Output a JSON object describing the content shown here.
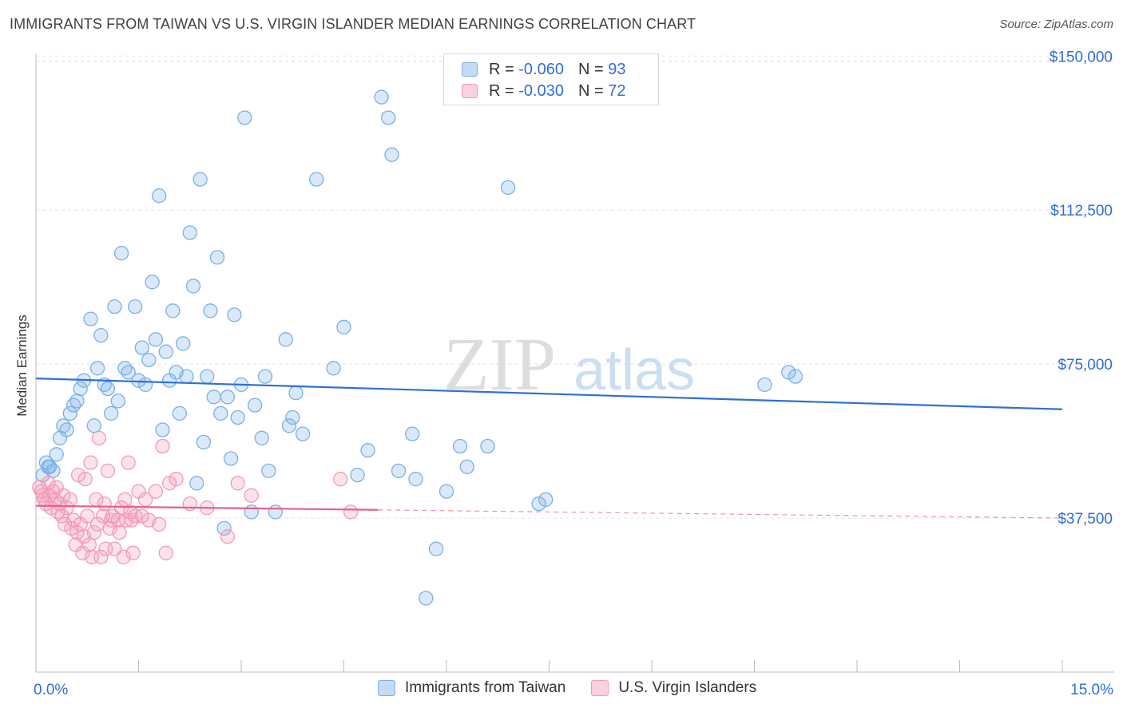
{
  "title": "IMMIGRANTS FROM TAIWAN VS U.S. VIRGIN ISLANDER MEDIAN EARNINGS CORRELATION CHART",
  "source": "Source: ZipAtlas.com",
  "watermark": {
    "zip": "ZIP",
    "atlas": "atlas"
  },
  "legend": {
    "rows": [
      {
        "r_label": "R =",
        "r_value": "-0.060",
        "n_label": "N =",
        "n_value": "93",
        "color": "#7ab0e6"
      },
      {
        "r_label": "R =",
        "r_value": "-0.030",
        "n_label": "N =",
        "n_value": "72",
        "color": "#f29ab8"
      }
    ]
  },
  "bottom_legend": [
    {
      "label": "Immigrants from Taiwan",
      "color": "#7ab0e6"
    },
    {
      "label": "U.S. Virgin Islanders",
      "color": "#f29ab8"
    }
  ],
  "chart_data": {
    "type": "scatter",
    "title": "IMMIGRANTS FROM TAIWAN VS U.S. VIRGIN ISLANDER MEDIAN EARNINGS CORRELATION CHART",
    "xlabel": "",
    "ylabel": "Median Earnings",
    "xlim": [
      0,
      15
    ],
    "ylim": [
      0,
      152000
    ],
    "x_tick_labels": [
      {
        "value": 0,
        "label": "0.0%"
      },
      {
        "value": 15,
        "label": "15.0%"
      }
    ],
    "y_ticks": [
      {
        "value": 37500,
        "label": "$37,500"
      },
      {
        "value": 75000,
        "label": "$75,000"
      },
      {
        "value": 112500,
        "label": "$112,500"
      },
      {
        "value": 150000,
        "label": "$150,000"
      }
    ],
    "grid": true,
    "legend_position": "top-center",
    "series": [
      {
        "name": "Immigrants from Taiwan",
        "color": "#7ab0e6",
        "line_color": "#2f6fd6",
        "trend": {
          "x": [
            0,
            15
          ],
          "y": [
            71500,
            64000
          ]
        },
        "points": [
          [
            0.15,
            51000
          ],
          [
            0.2,
            50000
          ],
          [
            0.25,
            49000
          ],
          [
            0.3,
            53000
          ],
          [
            0.35,
            57000
          ],
          [
            0.4,
            60000
          ],
          [
            0.45,
            59000
          ],
          [
            0.5,
            63000
          ],
          [
            0.55,
            65000
          ],
          [
            0.6,
            66000
          ],
          [
            0.65,
            69000
          ],
          [
            0.7,
            71000
          ],
          [
            0.8,
            86000
          ],
          [
            0.85,
            60000
          ],
          [
            0.9,
            74000
          ],
          [
            0.95,
            82000
          ],
          [
            1.0,
            70000
          ],
          [
            1.05,
            69000
          ],
          [
            1.1,
            63000
          ],
          [
            1.15,
            89000
          ],
          [
            1.2,
            66000
          ],
          [
            1.25,
            102000
          ],
          [
            1.3,
            74000
          ],
          [
            1.35,
            73000
          ],
          [
            1.45,
            89000
          ],
          [
            1.5,
            71000
          ],
          [
            1.55,
            79000
          ],
          [
            1.6,
            70000
          ],
          [
            1.65,
            76000
          ],
          [
            1.7,
            95000
          ],
          [
            1.75,
            81000
          ],
          [
            1.8,
            116000
          ],
          [
            1.85,
            59000
          ],
          [
            1.9,
            78000
          ],
          [
            1.95,
            71000
          ],
          [
            2.0,
            88000
          ],
          [
            2.05,
            73000
          ],
          [
            2.1,
            63000
          ],
          [
            2.15,
            80000
          ],
          [
            2.2,
            72000
          ],
          [
            2.25,
            107000
          ],
          [
            2.3,
            94000
          ],
          [
            2.35,
            46000
          ],
          [
            2.4,
            120000
          ],
          [
            2.45,
            56000
          ],
          [
            2.5,
            72000
          ],
          [
            2.55,
            88000
          ],
          [
            2.6,
            67000
          ],
          [
            2.65,
            101000
          ],
          [
            2.7,
            63000
          ],
          [
            2.75,
            35000
          ],
          [
            2.8,
            67000
          ],
          [
            2.85,
            52000
          ],
          [
            2.9,
            87000
          ],
          [
            2.95,
            62000
          ],
          [
            3.0,
            70000
          ],
          [
            3.05,
            135000
          ],
          [
            3.15,
            39000
          ],
          [
            3.2,
            65000
          ],
          [
            3.3,
            57000
          ],
          [
            3.35,
            72000
          ],
          [
            3.4,
            49000
          ],
          [
            3.5,
            39000
          ],
          [
            3.65,
            81000
          ],
          [
            3.7,
            60000
          ],
          [
            3.75,
            62000
          ],
          [
            3.8,
            68000
          ],
          [
            3.9,
            58000
          ],
          [
            4.1,
            120000
          ],
          [
            4.35,
            74000
          ],
          [
            4.5,
            84000
          ],
          [
            4.7,
            48000
          ],
          [
            4.85,
            54000
          ],
          [
            5.05,
            140000
          ],
          [
            5.15,
            135000
          ],
          [
            5.2,
            126000
          ],
          [
            5.3,
            49000
          ],
          [
            5.5,
            58000
          ],
          [
            5.55,
            47000
          ],
          [
            5.7,
            18000
          ],
          [
            5.85,
            30000
          ],
          [
            6.0,
            44000
          ],
          [
            6.2,
            55000
          ],
          [
            6.3,
            50000
          ],
          [
            6.6,
            55000
          ],
          [
            6.9,
            118000
          ],
          [
            7.35,
            41000
          ],
          [
            7.45,
            42000
          ],
          [
            10.65,
            70000
          ],
          [
            11.0,
            73000
          ],
          [
            11.1,
            72000
          ],
          [
            0.1,
            48000
          ],
          [
            0.18,
            50000
          ]
        ]
      },
      {
        "name": "U.S. Virgin Islanders",
        "color": "#f29ab8",
        "line_color": "#e8608a",
        "trend": {
          "x": [
            0,
            5
          ],
          "y": [
            40500,
            39500
          ]
        },
        "trend_dashed": {
          "x": [
            5,
            15
          ],
          "y": [
            39500,
            37500
          ]
        },
        "points": [
          [
            0.05,
            45000
          ],
          [
            0.08,
            44000
          ],
          [
            0.1,
            43000
          ],
          [
            0.12,
            42000
          ],
          [
            0.15,
            41000
          ],
          [
            0.18,
            46000
          ],
          [
            0.2,
            43000
          ],
          [
            0.22,
            40000
          ],
          [
            0.25,
            44000
          ],
          [
            0.28,
            42000
          ],
          [
            0.3,
            45000
          ],
          [
            0.32,
            39000
          ],
          [
            0.35,
            41000
          ],
          [
            0.38,
            38000
          ],
          [
            0.4,
            43000
          ],
          [
            0.42,
            36000
          ],
          [
            0.45,
            40000
          ],
          [
            0.5,
            42000
          ],
          [
            0.52,
            35000
          ],
          [
            0.55,
            37000
          ],
          [
            0.58,
            31000
          ],
          [
            0.6,
            34000
          ],
          [
            0.62,
            48000
          ],
          [
            0.65,
            36000
          ],
          [
            0.68,
            29000
          ],
          [
            0.7,
            33000
          ],
          [
            0.72,
            47000
          ],
          [
            0.75,
            38000
          ],
          [
            0.78,
            31000
          ],
          [
            0.8,
            51000
          ],
          [
            0.82,
            28000
          ],
          [
            0.85,
            34000
          ],
          [
            0.88,
            42000
          ],
          [
            0.9,
            36000
          ],
          [
            0.92,
            57000
          ],
          [
            0.95,
            28000
          ],
          [
            0.98,
            38000
          ],
          [
            1.0,
            41000
          ],
          [
            1.02,
            30000
          ],
          [
            1.05,
            49000
          ],
          [
            1.08,
            35000
          ],
          [
            1.1,
            37000
          ],
          [
            1.12,
            38000
          ],
          [
            1.15,
            30000
          ],
          [
            1.2,
            37000
          ],
          [
            1.22,
            34000
          ],
          [
            1.25,
            40000
          ],
          [
            1.28,
            28000
          ],
          [
            1.3,
            42000
          ],
          [
            1.32,
            37000
          ],
          [
            1.35,
            51000
          ],
          [
            1.38,
            39000
          ],
          [
            1.4,
            37000
          ],
          [
            1.42,
            29000
          ],
          [
            1.45,
            38000
          ],
          [
            1.5,
            44000
          ],
          [
            1.55,
            38000
          ],
          [
            1.6,
            42000
          ],
          [
            1.65,
            37000
          ],
          [
            1.75,
            44000
          ],
          [
            1.8,
            36000
          ],
          [
            1.85,
            55000
          ],
          [
            1.9,
            29000
          ],
          [
            1.95,
            46000
          ],
          [
            2.05,
            47000
          ],
          [
            2.25,
            41000
          ],
          [
            2.5,
            40000
          ],
          [
            2.8,
            33000
          ],
          [
            2.95,
            46000
          ],
          [
            3.15,
            43000
          ],
          [
            4.45,
            47000
          ],
          [
            4.6,
            39000
          ]
        ]
      }
    ]
  }
}
